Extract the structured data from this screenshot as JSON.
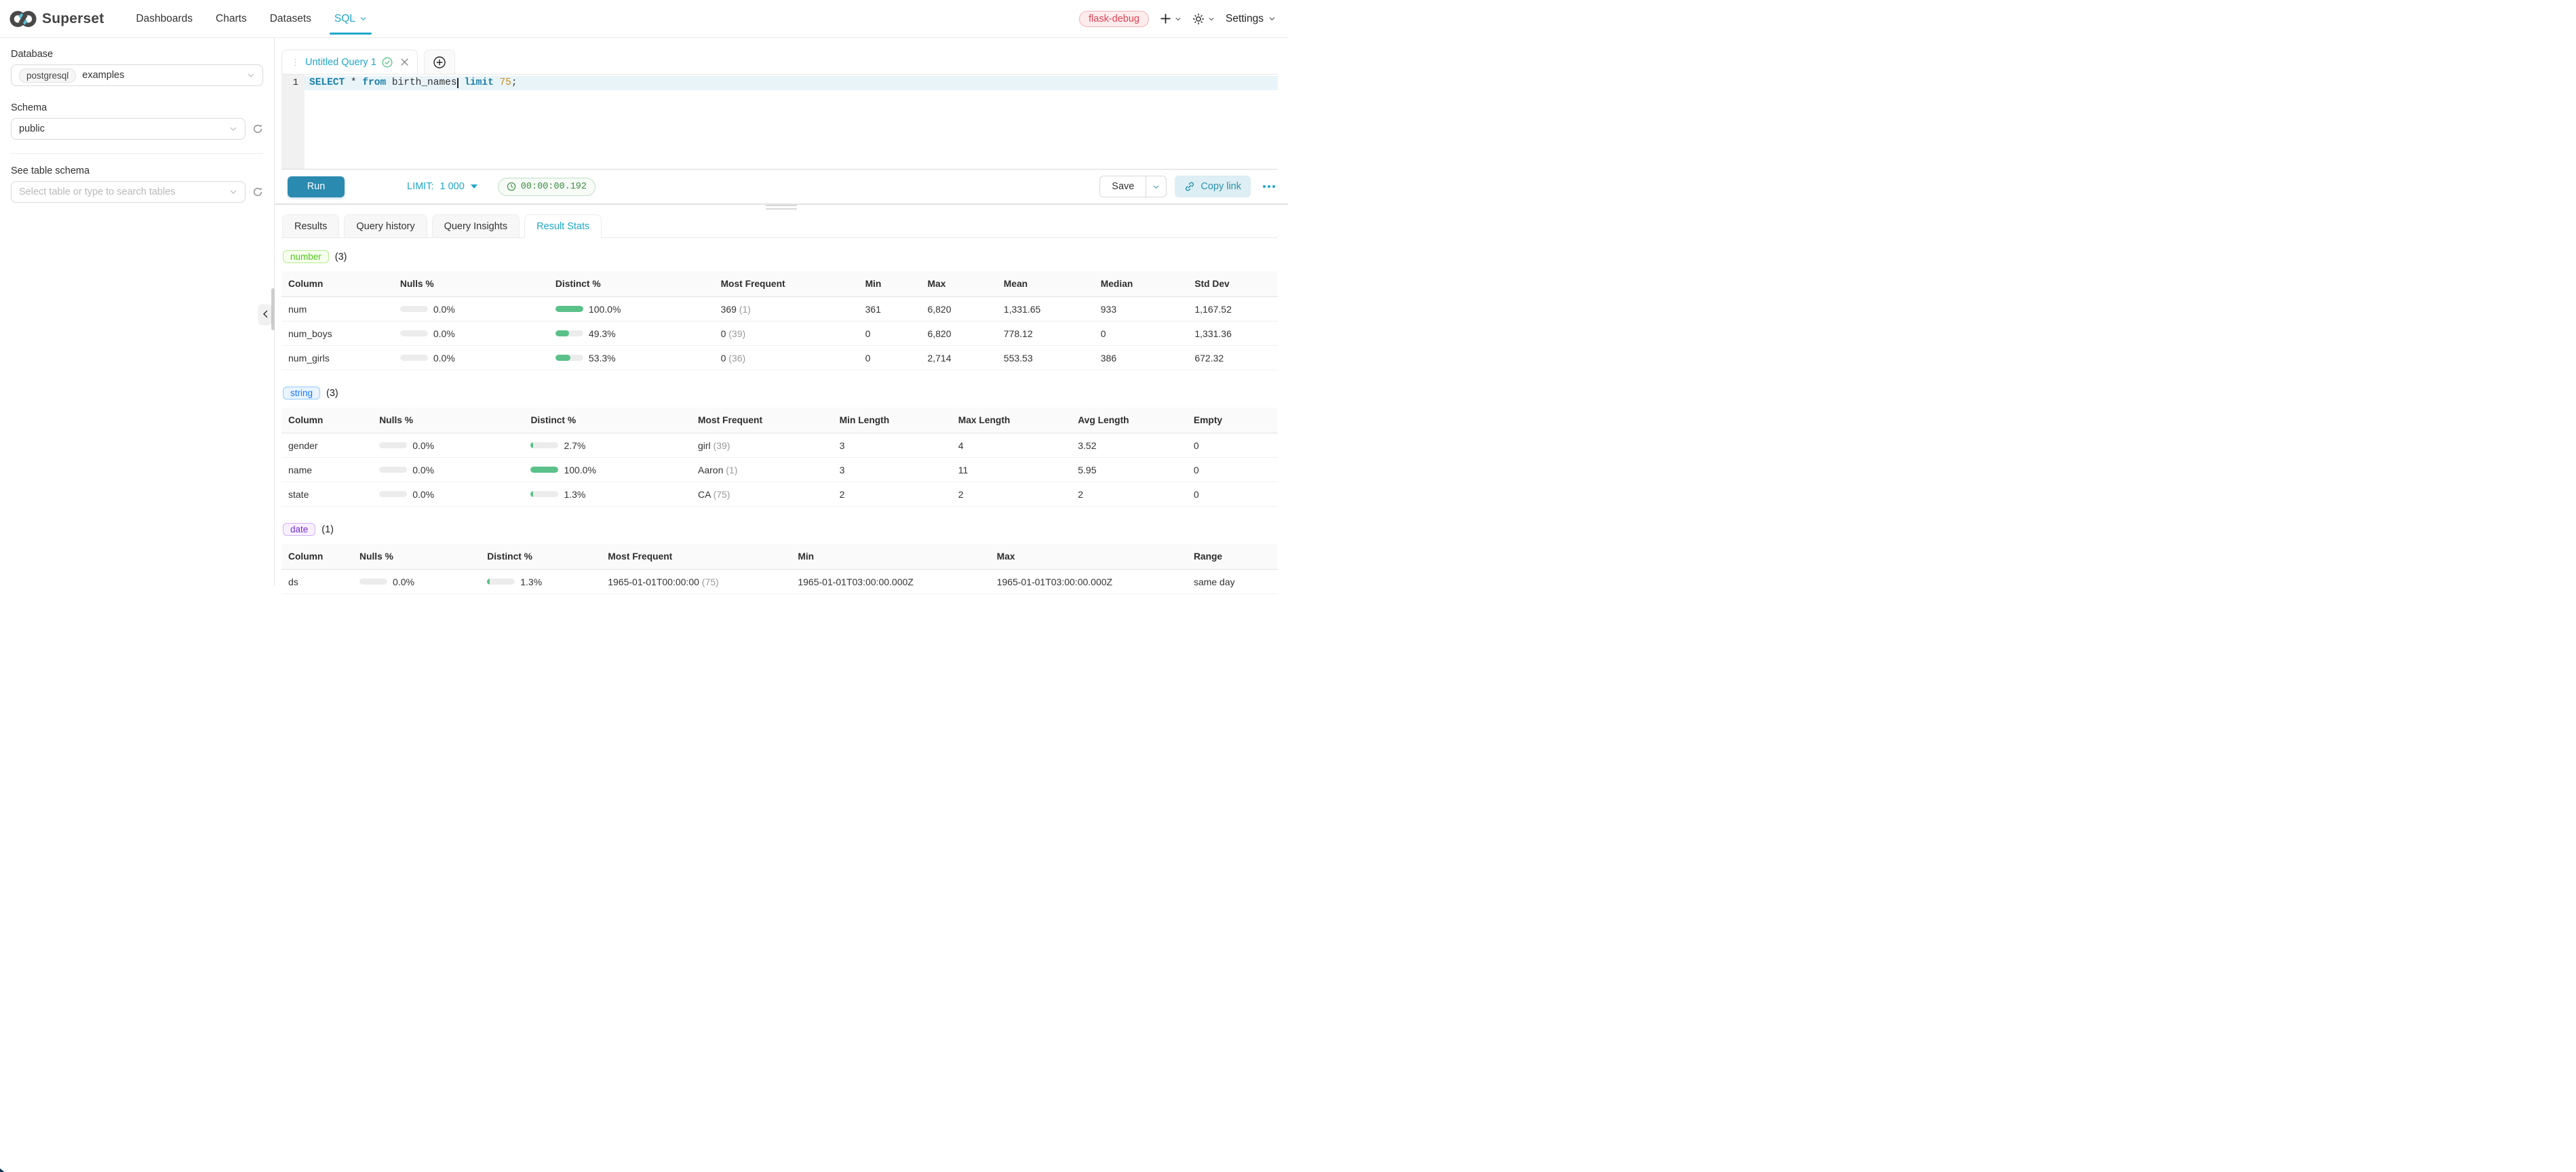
{
  "navbar": {
    "brand": "Superset",
    "items": [
      {
        "label": "Dashboards"
      },
      {
        "label": "Charts"
      },
      {
        "label": "Datasets"
      },
      {
        "label": "SQL",
        "active": true
      }
    ],
    "environment_badge": "flask-debug",
    "settings_label": "Settings"
  },
  "sidebar": {
    "database_label": "Database",
    "database_engine_tag": "postgresql",
    "database_value": "examples",
    "schema_label": "Schema",
    "schema_value": "public",
    "table_section_label": "See table schema",
    "table_placeholder": "Select table or type to search tables"
  },
  "query_tab": {
    "title": "Untitled Query 1"
  },
  "editor": {
    "line_number": "1",
    "code": {
      "kw_select": "SELECT",
      "star": " * ",
      "kw_from": "from",
      "identifier": " birth_names",
      "sp": " ",
      "kw_limit": "limit",
      "number": " 75",
      "semicolon": ";"
    }
  },
  "toolbar": {
    "run_label": "Run",
    "limit_label": "LIMIT:",
    "limit_value": "1 000",
    "elapsed_time": "00:00:00.192",
    "save_label": "Save",
    "copy_link_label": "Copy link"
  },
  "results_tabs": [
    {
      "label": "Results"
    },
    {
      "label": "Query history"
    },
    {
      "label": "Query Insights"
    },
    {
      "label": "Result Stats",
      "active": true
    }
  ],
  "stats": {
    "sections": [
      {
        "tag": "number",
        "tag_style": "green",
        "count": "(3)",
        "headers": [
          "Column",
          "Nulls %",
          "Distinct %",
          "Most Frequent",
          "Min",
          "Max",
          "Mean",
          "Median",
          "Std Dev"
        ],
        "rows": [
          {
            "column": "num",
            "nulls_pct": 0,
            "nulls_label": "0.0%",
            "distinct_pct": 100,
            "distinct_label": "100.0%",
            "most_frequent": "369",
            "most_frequent_count": "(1)",
            "cells": [
              "361",
              "6,820",
              "1,331.65",
              "933",
              "1,167.52"
            ]
          },
          {
            "column": "num_boys",
            "nulls_pct": 0,
            "nulls_label": "0.0%",
            "distinct_pct": 49.3,
            "distinct_label": "49.3%",
            "most_frequent": "0",
            "most_frequent_count": "(39)",
            "cells": [
              "0",
              "6,820",
              "778.12",
              "0",
              "1,331.36"
            ]
          },
          {
            "column": "num_girls",
            "nulls_pct": 0,
            "nulls_label": "0.0%",
            "distinct_pct": 53.3,
            "distinct_label": "53.3%",
            "most_frequent": "0",
            "most_frequent_count": "(36)",
            "cells": [
              "0",
              "2,714",
              "553.53",
              "386",
              "672.32"
            ]
          }
        ]
      },
      {
        "tag": "string",
        "tag_style": "blue",
        "count": "(3)",
        "headers": [
          "Column",
          "Nulls %",
          "Distinct %",
          "Most Frequent",
          "Min Length",
          "Max Length",
          "Avg Length",
          "Empty"
        ],
        "rows": [
          {
            "column": "gender",
            "nulls_pct": 0,
            "nulls_label": "0.0%",
            "distinct_pct": 2.7,
            "distinct_label": "2.7%",
            "most_frequent": "girl",
            "most_frequent_count": "(39)",
            "cells": [
              "3",
              "4",
              "3.52",
              "0"
            ]
          },
          {
            "column": "name",
            "nulls_pct": 0,
            "nulls_label": "0.0%",
            "distinct_pct": 100,
            "distinct_label": "100.0%",
            "most_frequent": "Aaron",
            "most_frequent_count": "(1)",
            "cells": [
              "3",
              "11",
              "5.95",
              "0"
            ]
          },
          {
            "column": "state",
            "nulls_pct": 0,
            "nulls_label": "0.0%",
            "distinct_pct": 1.3,
            "distinct_label": "1.3%",
            "most_frequent": "CA",
            "most_frequent_count": "(75)",
            "cells": [
              "2",
              "2",
              "2",
              "0"
            ]
          }
        ]
      },
      {
        "tag": "date",
        "tag_style": "purple",
        "count": "(1)",
        "headers": [
          "Column",
          "Nulls %",
          "Distinct %",
          "Most Frequent",
          "Min",
          "Max",
          "Range"
        ],
        "rows": [
          {
            "column": "ds",
            "nulls_pct": 0,
            "nulls_label": "0.0%",
            "distinct_pct": 1.3,
            "distinct_label": "1.3%",
            "most_frequent": "1965-01-01T00:00:00",
            "most_frequent_count": "(75)",
            "cells": [
              "1965-01-01T03:00:00.000Z",
              "1965-01-01T03:00:00.000Z",
              "same day"
            ]
          }
        ]
      }
    ]
  },
  "icons": {
    "logo": "superset-infinity-logo",
    "nav_carets": "chevron-down-icon",
    "new_item": "plus-icon",
    "theme": "sun-icon",
    "tab_status": "check-circle-icon",
    "tab_close": "close-icon",
    "new_tab": "plus-circle-icon",
    "schema_refresh": "refresh-icon",
    "timer": "clock-icon",
    "copy_link": "link-icon",
    "more": "ellipsis-icon",
    "collapse_panel": "chevron-left-icon"
  },
  "colors": {
    "primary": "#20a7c9",
    "run_button": "#2a8ab0",
    "success_green": "#5ac189",
    "error_red": "#e04355",
    "tag_green": "#52c41a",
    "tag_blue": "#1677ff",
    "tag_purple": "#722ed1"
  }
}
